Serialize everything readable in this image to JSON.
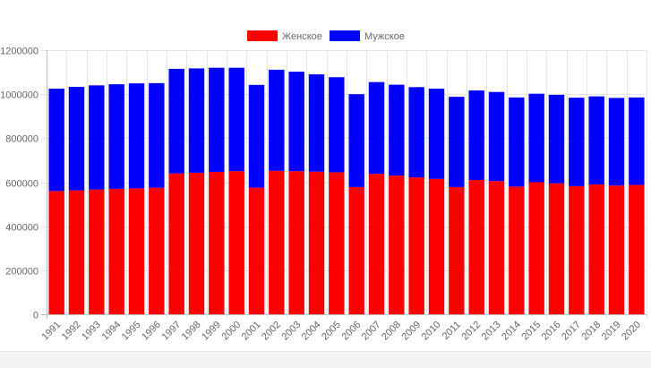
{
  "chart_data": {
    "type": "bar",
    "stacked": true,
    "title": "",
    "xlabel": "",
    "ylabel": "",
    "ylim": [
      0,
      1200000
    ],
    "yticks": [
      0,
      200000,
      400000,
      600000,
      800000,
      1000000,
      1200000
    ],
    "grid": true,
    "legend_position": "top-center",
    "categories": [
      "1991",
      "1992",
      "1993",
      "1994",
      "1995",
      "1996",
      "1997",
      "1998",
      "1999",
      "2000",
      "2001",
      "2002",
      "2003",
      "2004",
      "2005",
      "2006",
      "2007",
      "2008",
      "2009",
      "2010",
      "2011",
      "2012",
      "2013",
      "2014",
      "2015",
      "2016",
      "2017",
      "2018",
      "2019",
      "2020"
    ],
    "series": [
      {
        "name": "Женское",
        "color": "#ff0000",
        "values": [
          560000,
          563000,
          567000,
          570000,
          572000,
          575000,
          640000,
          643000,
          647000,
          650000,
          575000,
          652000,
          650000,
          648000,
          645000,
          578000,
          638000,
          630000,
          622000,
          615000,
          578000,
          610000,
          605000,
          580000,
          600000,
          595000,
          582000,
          590000,
          585000,
          588000
        ]
      },
      {
        "name": "Мужское",
        "color": "#0000ff",
        "values": [
          465000,
          470000,
          473000,
          475000,
          477000,
          475000,
          475000,
          474000,
          473000,
          470000,
          467000,
          459000,
          452000,
          442000,
          432000,
          422000,
          417000,
          413000,
          410000,
          410000,
          410000,
          407000,
          405000,
          405000,
          402000,
          402000,
          402000,
          400000,
          398000,
          397000
        ]
      }
    ]
  }
}
